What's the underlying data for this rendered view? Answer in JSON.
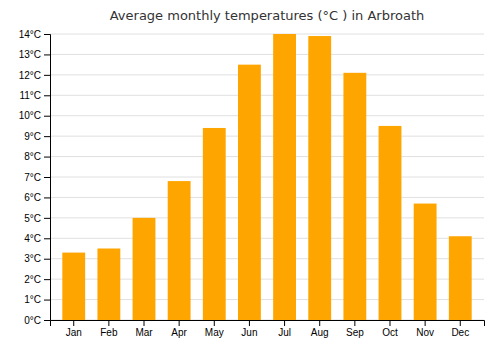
{
  "chart_data": {
    "type": "bar",
    "title": "Average monthly temperatures (°C ) in Arbroath",
    "categories": [
      "Jan",
      "Feb",
      "Mar",
      "Apr",
      "May",
      "Jun",
      "Jul",
      "Aug",
      "Sep",
      "Oct",
      "Nov",
      "Dec"
    ],
    "values": [
      3.3,
      3.5,
      5.0,
      6.8,
      9.4,
      12.5,
      14.0,
      13.9,
      12.1,
      9.5,
      5.7,
      4.1
    ],
    "color": "#FFA500",
    "ylim": [
      0,
      14
    ],
    "yticks": [
      {
        "value": 0,
        "label": "0°C"
      },
      {
        "value": 1,
        "label": "1°C"
      },
      {
        "value": 2,
        "label": "2°C"
      },
      {
        "value": 3,
        "label": "3°C"
      },
      {
        "value": 4,
        "label": "4°C"
      },
      {
        "value": 5,
        "label": "5°C"
      },
      {
        "value": 6,
        "label": "6°C"
      },
      {
        "value": 7,
        "label": "7°C"
      },
      {
        "value": 8,
        "label": "8°C"
      },
      {
        "value": 9,
        "label": "9°C"
      },
      {
        "value": 10,
        "label": "10°C"
      },
      {
        "value": 11,
        "label": "11°C"
      },
      {
        "value": 12,
        "label": "12°C"
      },
      {
        "value": 13,
        "label": "13°C"
      },
      {
        "value": 14,
        "label": "14°C"
      }
    ],
    "grid": true
  }
}
